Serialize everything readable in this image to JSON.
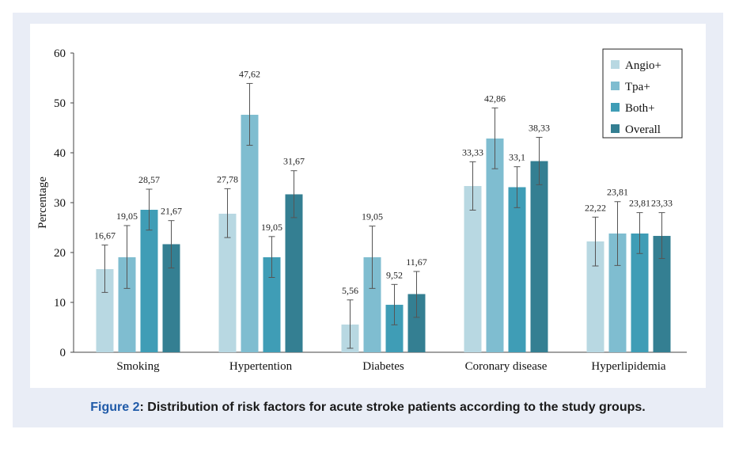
{
  "caption": {
    "label": "Figure 2",
    "text": ": Distribution of risk factors for acute stroke patients according to the study groups."
  },
  "chart_data": {
    "type": "bar",
    "ylabel": "Percentage",
    "xlabel": "",
    "ylim": [
      0,
      60
    ],
    "yticks": [
      0,
      10,
      20,
      30,
      40,
      50,
      60
    ],
    "legend_position": "top-right",
    "error_bars": true,
    "categories": [
      "Smoking",
      "Hypertention",
      "Diabetes",
      "Coronary disease",
      "Hyperlipidemia"
    ],
    "series": [
      {
        "name": "Angio+",
        "color": "#b8d8e2",
        "values": [
          16.67,
          27.78,
          5.56,
          33.33,
          22.22
        ],
        "labels": [
          "16,67",
          "27,78",
          "5,56",
          "33,33",
          "22,22"
        ],
        "err_low": [
          12.0,
          23.0,
          0.8,
          28.5,
          17.3
        ],
        "err_high": [
          21.5,
          32.8,
          10.5,
          38.2,
          27.1
        ]
      },
      {
        "name": "Tpa+",
        "color": "#7fbdd0",
        "values": [
          19.05,
          47.62,
          19.05,
          42.86,
          23.81
        ],
        "labels": [
          "19,05",
          "47,62",
          "19,05",
          "42,86",
          "23,81"
        ],
        "err_low": [
          12.8,
          41.5,
          12.8,
          36.8,
          17.4
        ],
        "err_high": [
          25.4,
          53.9,
          25.3,
          49.0,
          30.2
        ]
      },
      {
        "name": "Both+",
        "color": "#3f9db6",
        "values": [
          28.57,
          19.05,
          9.52,
          33.1,
          23.81
        ],
        "labels": [
          "28,57",
          "19,05",
          "9,52",
          "33,1",
          "23,81"
        ],
        "err_low": [
          24.5,
          15.0,
          5.5,
          29.0,
          19.8
        ],
        "err_high": [
          32.7,
          23.2,
          13.6,
          37.2,
          28.0
        ]
      },
      {
        "name": "Overall",
        "color": "#347f92",
        "values": [
          21.67,
          31.67,
          11.67,
          38.33,
          23.33
        ],
        "labels": [
          "21,67",
          "31,67",
          "11,67",
          "38,33",
          "23,33"
        ],
        "err_low": [
          16.9,
          27.0,
          7.0,
          33.6,
          18.8
        ],
        "err_high": [
          26.4,
          36.4,
          16.2,
          43.1,
          28.0
        ]
      }
    ]
  }
}
